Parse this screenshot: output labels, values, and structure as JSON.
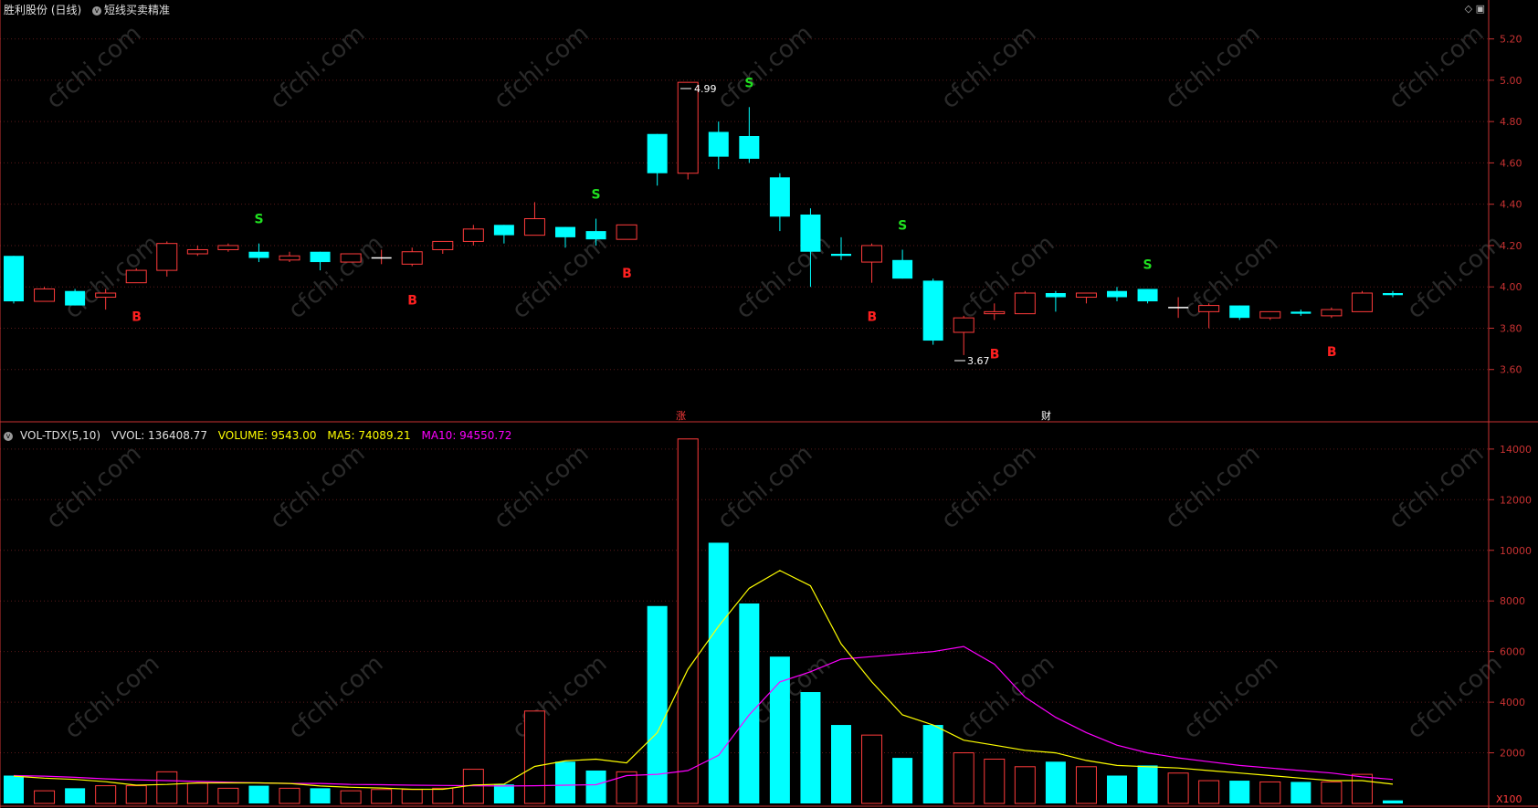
{
  "header": {
    "stock": "胜利股份 (日线)",
    "indicator": "短线买卖精准",
    "icons": [
      "diamond-icon",
      "maximize-icon"
    ]
  },
  "volume_header": {
    "name": "VOL-TDX(5,10)",
    "vvol": "VVOL: 136408.77",
    "volume": "VOLUME: 9543.00",
    "ma5": "MA5: 74089.21",
    "ma10": "MA10: 94550.72"
  },
  "markers": {
    "high_label": "4.99",
    "low_label": "3.67",
    "event_zhang": "涨",
    "event_cai": "财",
    "scale_label": "X100"
  },
  "colors": {
    "up": "#ff3b3b",
    "down": "#00ffff",
    "ma5": "#ffff00",
    "ma10": "#ff00ff",
    "buy": "#ff2020",
    "sell": "#20e020",
    "axis": "#c83232"
  },
  "chart_data": [
    {
      "type": "candlestick",
      "title": "胜利股份 (日线)",
      "ylim": [
        3.4,
        5.3
      ],
      "yticks": [
        3.6,
        3.8,
        4.0,
        4.2,
        4.4,
        4.6,
        4.8,
        5.0,
        5.2
      ],
      "candles": [
        {
          "o": 4.15,
          "h": 4.15,
          "l": 3.92,
          "c": 3.93
        },
        {
          "o": 3.93,
          "h": 4.0,
          "l": 3.93,
          "c": 3.99
        },
        {
          "o": 3.98,
          "h": 3.99,
          "l": 3.91,
          "c": 3.91
        },
        {
          "o": 3.95,
          "h": 3.99,
          "l": 3.89,
          "c": 3.97
        },
        {
          "o": 4.02,
          "h": 4.09,
          "l": 4.02,
          "c": 4.08
        },
        {
          "o": 4.08,
          "h": 4.22,
          "l": 4.05,
          "c": 4.21
        },
        {
          "o": 4.16,
          "h": 4.2,
          "l": 4.15,
          "c": 4.18
        },
        {
          "o": 4.18,
          "h": 4.21,
          "l": 4.17,
          "c": 4.2
        },
        {
          "o": 4.17,
          "h": 4.21,
          "l": 4.12,
          "c": 4.14
        },
        {
          "o": 4.13,
          "h": 4.17,
          "l": 4.12,
          "c": 4.15
        },
        {
          "o": 4.17,
          "h": 4.17,
          "l": 4.08,
          "c": 4.12
        },
        {
          "o": 4.12,
          "h": 4.16,
          "l": 4.12,
          "c": 4.16
        },
        {
          "o": 4.14,
          "h": 4.18,
          "l": 4.11,
          "c": 4.14
        },
        {
          "o": 4.11,
          "h": 4.19,
          "l": 4.1,
          "c": 4.17
        },
        {
          "o": 4.18,
          "h": 4.22,
          "l": 4.16,
          "c": 4.22
        },
        {
          "o": 4.22,
          "h": 4.3,
          "l": 4.2,
          "c": 4.28
        },
        {
          "o": 4.3,
          "h": 4.3,
          "l": 4.21,
          "c": 4.25
        },
        {
          "o": 4.25,
          "h": 4.41,
          "l": 4.25,
          "c": 4.33
        },
        {
          "o": 4.29,
          "h": 4.29,
          "l": 4.19,
          "c": 4.24
        },
        {
          "o": 4.27,
          "h": 4.33,
          "l": 4.2,
          "c": 4.23
        },
        {
          "o": 4.23,
          "h": 4.3,
          "l": 4.23,
          "c": 4.3
        },
        {
          "o": 4.74,
          "h": 4.74,
          "l": 4.49,
          "c": 4.55
        },
        {
          "o": 4.55,
          "h": 4.99,
          "l": 4.52,
          "c": 4.99
        },
        {
          "o": 4.75,
          "h": 4.8,
          "l": 4.57,
          "c": 4.63
        },
        {
          "o": 4.73,
          "h": 4.87,
          "l": 4.6,
          "c": 4.62
        },
        {
          "o": 4.53,
          "h": 4.55,
          "l": 4.27,
          "c": 4.34
        },
        {
          "o": 4.35,
          "h": 4.38,
          "l": 4.0,
          "c": 4.17
        },
        {
          "o": 4.16,
          "h": 4.24,
          "l": 4.13,
          "c": 4.15
        },
        {
          "o": 4.12,
          "h": 4.21,
          "l": 4.02,
          "c": 4.2
        },
        {
          "o": 4.13,
          "h": 4.18,
          "l": 4.04,
          "c": 4.04
        },
        {
          "o": 4.03,
          "h": 4.04,
          "l": 3.72,
          "c": 3.74
        },
        {
          "o": 3.78,
          "h": 3.86,
          "l": 3.67,
          "c": 3.85
        },
        {
          "o": 3.87,
          "h": 3.92,
          "l": 3.84,
          "c": 3.88
        },
        {
          "o": 3.87,
          "h": 3.98,
          "l": 3.87,
          "c": 3.97
        },
        {
          "o": 3.97,
          "h": 3.98,
          "l": 3.88,
          "c": 3.95
        },
        {
          "o": 3.95,
          "h": 3.97,
          "l": 3.92,
          "c": 3.97
        },
        {
          "o": 3.98,
          "h": 4.0,
          "l": 3.93,
          "c": 3.95
        },
        {
          "o": 3.99,
          "h": 3.99,
          "l": 3.92,
          "c": 3.93
        },
        {
          "o": 3.9,
          "h": 3.95,
          "l": 3.85,
          "c": 3.9
        },
        {
          "o": 3.88,
          "h": 3.92,
          "l": 3.8,
          "c": 3.91
        },
        {
          "o": 3.91,
          "h": 3.91,
          "l": 3.84,
          "c": 3.85
        },
        {
          "o": 3.85,
          "h": 3.88,
          "l": 3.84,
          "c": 3.88
        },
        {
          "o": 3.88,
          "h": 3.89,
          "l": 3.86,
          "c": 3.87
        },
        {
          "o": 3.86,
          "h": 3.9,
          "l": 3.85,
          "c": 3.89
        },
        {
          "o": 3.88,
          "h": 3.98,
          "l": 3.88,
          "c": 3.97
        },
        {
          "o": 3.97,
          "h": 3.98,
          "l": 3.95,
          "c": 3.96
        }
      ],
      "signals": [
        {
          "i": 4,
          "t": "B"
        },
        {
          "i": 8,
          "t": "S"
        },
        {
          "i": 13,
          "t": "B"
        },
        {
          "i": 19,
          "t": "S"
        },
        {
          "i": 20,
          "t": "B"
        },
        {
          "i": 24,
          "t": "S"
        },
        {
          "i": 28,
          "t": "B"
        },
        {
          "i": 29,
          "t": "S"
        },
        {
          "i": 32,
          "t": "B"
        },
        {
          "i": 37,
          "t": "S"
        },
        {
          "i": 43,
          "t": "B"
        }
      ]
    },
    {
      "type": "bar",
      "title": "VOL-TDX(5,10)",
      "ylim": [
        0,
        14500
      ],
      "yticks": [
        2000,
        4000,
        6000,
        8000,
        10000,
        12000,
        14000
      ],
      "volumes": [
        1100,
        500,
        600,
        700,
        700,
        1250,
        800,
        600,
        700,
        600,
        600,
        500,
        550,
        550,
        600,
        1350,
        750,
        3650,
        1650,
        1300,
        1250,
        7800,
        14400,
        10300,
        7900,
        5800,
        4400,
        3100,
        2700,
        1800,
        3100,
        2000,
        1750,
        1450,
        1650,
        1450,
        1100,
        1500,
        1200,
        900,
        900,
        850,
        850,
        850,
        1150,
        120
      ],
      "ma5": [
        1080,
        1000,
        950,
        860,
        720,
        750,
        810,
        810,
        810,
        790,
        690,
        640,
        610,
        560,
        560,
        730,
        760,
        1460,
        1680,
        1750,
        1600,
        2800,
        5300,
        7000,
        8500,
        9200,
        8600,
        6300,
        4800,
        3500,
        3100,
        2500,
        2300,
        2100,
        2000,
        1700,
        1500,
        1450,
        1400,
        1300,
        1200,
        1100,
        1000,
        900,
        900,
        760
      ],
      "ma10": [
        1100,
        1080,
        1030,
        970,
        930,
        900,
        870,
        840,
        810,
        790,
        790,
        750,
        740,
        720,
        710,
        700,
        690,
        700,
        720,
        740,
        1100,
        1150,
        1300,
        1900,
        3500,
        4800,
        5200,
        5700,
        5800,
        5900,
        6000,
        6200,
        5500,
        4200,
        3400,
        2800,
        2300,
        2000,
        1800,
        1650,
        1500,
        1400,
        1300,
        1200,
        1050,
        950
      ]
    }
  ]
}
